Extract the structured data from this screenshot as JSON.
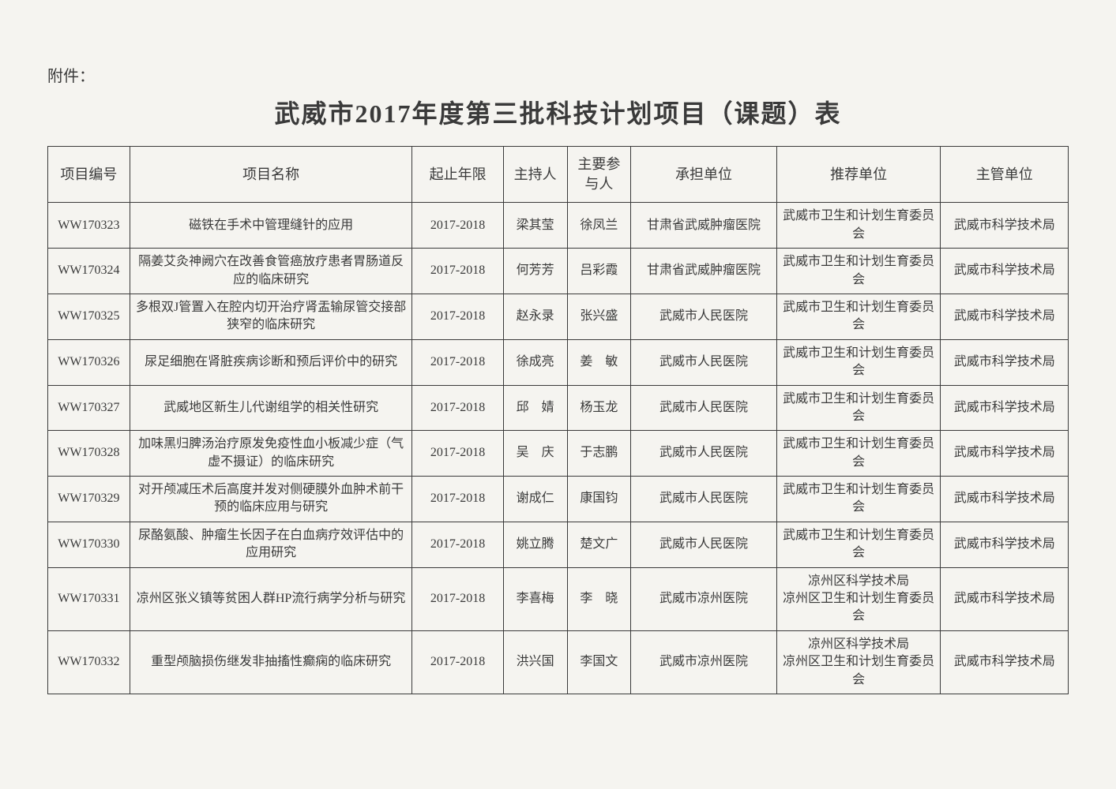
{
  "attachment_label": "附件：",
  "title": "武威市2017年度第三批科技计划项目（课题）表",
  "columns": [
    "项目编号",
    "项目名称",
    "起止年限",
    "主持人",
    "主要参与人",
    "承担单位",
    "推荐单位",
    "主管单位"
  ],
  "rows": [
    {
      "id": "WW170323",
      "name": "磁铁在手术中管理缝针的应用",
      "year": "2017-2018",
      "lead": "梁其莹",
      "participant": "徐凤兰",
      "org": "甘肃省武威肿瘤医院",
      "recommend": "武威市卫生和计划生育委员会",
      "supervise": "武威市科学技术局"
    },
    {
      "id": "WW170324",
      "name": "隔姜艾灸神阙穴在改善食管癌放疗患者胃肠道反应的临床研究",
      "year": "2017-2018",
      "lead": "何芳芳",
      "participant": "吕彩霞",
      "org": "甘肃省武威肿瘤医院",
      "recommend": "武威市卫生和计划生育委员会",
      "supervise": "武威市科学技术局"
    },
    {
      "id": "WW170325",
      "name": "多根双J管置入在腔内切开治疗肾盂输尿管交接部狭窄的临床研究",
      "year": "2017-2018",
      "lead": "赵永录",
      "participant": "张兴盛",
      "org": "武威市人民医院",
      "recommend": "武威市卫生和计划生育委员会",
      "supervise": "武威市科学技术局"
    },
    {
      "id": "WW170326",
      "name": "尿足细胞在肾脏疾病诊断和预后评价中的研究",
      "year": "2017-2018",
      "lead": "徐成亮",
      "participant": "姜　敏",
      "org": "武威市人民医院",
      "recommend": "武威市卫生和计划生育委员会",
      "supervise": "武威市科学技术局"
    },
    {
      "id": "WW170327",
      "name": "武威地区新生儿代谢组学的相关性研究",
      "year": "2017-2018",
      "lead": "邱　婧",
      "participant": "杨玉龙",
      "org": "武威市人民医院",
      "recommend": "武威市卫生和计划生育委员会",
      "supervise": "武威市科学技术局"
    },
    {
      "id": "WW170328",
      "name": "加味黑归脾汤治疗原发免疫性血小板减少症（气虚不摄证）的临床研究",
      "year": "2017-2018",
      "lead": "吴　庆",
      "participant": "于志鹏",
      "org": "武威市人民医院",
      "recommend": "武威市卫生和计划生育委员会",
      "supervise": "武威市科学技术局"
    },
    {
      "id": "WW170329",
      "name": "对开颅减压术后高度并发对侧硬膜外血肿术前干预的临床应用与研究",
      "year": "2017-2018",
      "lead": "谢成仁",
      "participant": "康国钧",
      "org": "武威市人民医院",
      "recommend": "武威市卫生和计划生育委员会",
      "supervise": "武威市科学技术局"
    },
    {
      "id": "WW170330",
      "name": "尿酪氨酸、肿瘤生长因子在白血病疗效评估中的应用研究",
      "year": "2017-2018",
      "lead": "姚立腾",
      "participant": "楚文广",
      "org": "武威市人民医院",
      "recommend": "武威市卫生和计划生育委员会",
      "supervise": "武威市科学技术局"
    },
    {
      "id": "WW170331",
      "name": "凉州区张义镇等贫困人群HP流行病学分析与研究",
      "year": "2017-2018",
      "lead": "李喜梅",
      "participant": "李　晓",
      "org": "武威市凉州医院",
      "recommend": "凉州区科学技术局\n凉州区卫生和计划生育委员会",
      "supervise": "武威市科学技术局"
    },
    {
      "id": "WW170332",
      "name": "重型颅脑损伤继发非抽搐性癫痫的临床研究",
      "year": "2017-2018",
      "lead": "洪兴国",
      "participant": "李国文",
      "org": "武威市凉州医院",
      "recommend": "凉州区科学技术局\n凉州区卫生和计划生育委员会",
      "supervise": "武威市科学技术局"
    }
  ]
}
